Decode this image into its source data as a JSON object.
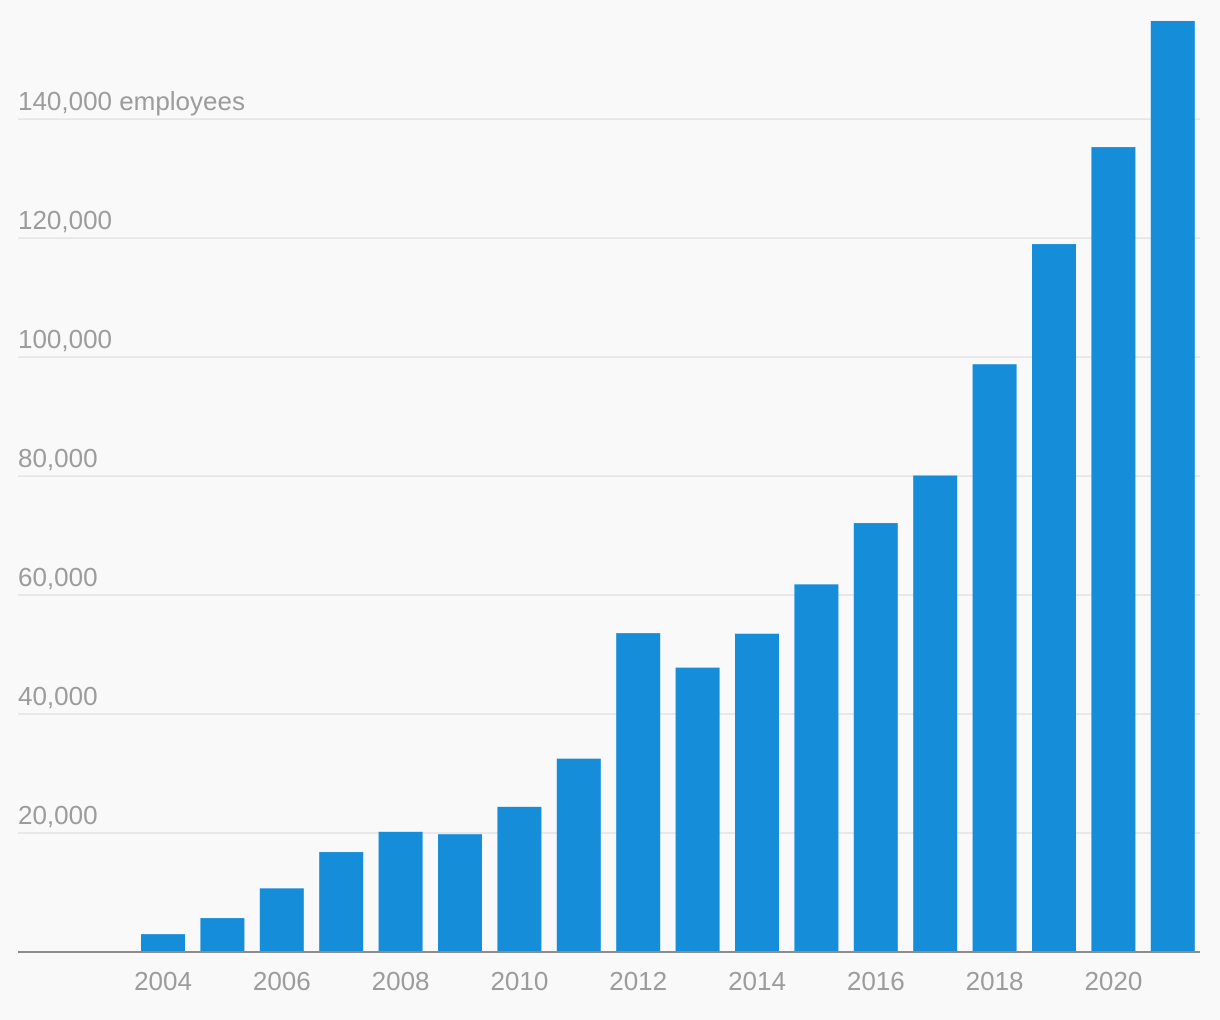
{
  "chart_data": {
    "type": "bar",
    "title": "",
    "xlabel": "",
    "ylabel": "",
    "y_unit_label": "employees",
    "categories": [
      "2004",
      "2005",
      "2006",
      "2007",
      "2008",
      "2009",
      "2010",
      "2011",
      "2012",
      "2013",
      "2014",
      "2015",
      "2016",
      "2017",
      "2018",
      "2019",
      "2020",
      "2021"
    ],
    "x_tick_labels": [
      "2004",
      "2006",
      "2008",
      "2010",
      "2012",
      "2014",
      "2016",
      "2018",
      "2020"
    ],
    "values": [
      3000,
      5700,
      10700,
      16800,
      20200,
      19800,
      24400,
      32500,
      53600,
      47800,
      53500,
      61800,
      72100,
      80100,
      98800,
      119000,
      135300,
      156500
    ],
    "y_ticks": [
      {
        "value": 20000,
        "label": "20,000"
      },
      {
        "value": 40000,
        "label": "40,000"
      },
      {
        "value": 60000,
        "label": "60,000"
      },
      {
        "value": 80000,
        "label": "80,000"
      },
      {
        "value": 100000,
        "label": "100,000"
      },
      {
        "value": 120000,
        "label": "120,000"
      },
      {
        "value": 140000,
        "label": "140,000 employees"
      }
    ],
    "ylim": [
      0,
      157000
    ],
    "grid": true,
    "bar_color": "#168dd9",
    "legend": "none"
  }
}
